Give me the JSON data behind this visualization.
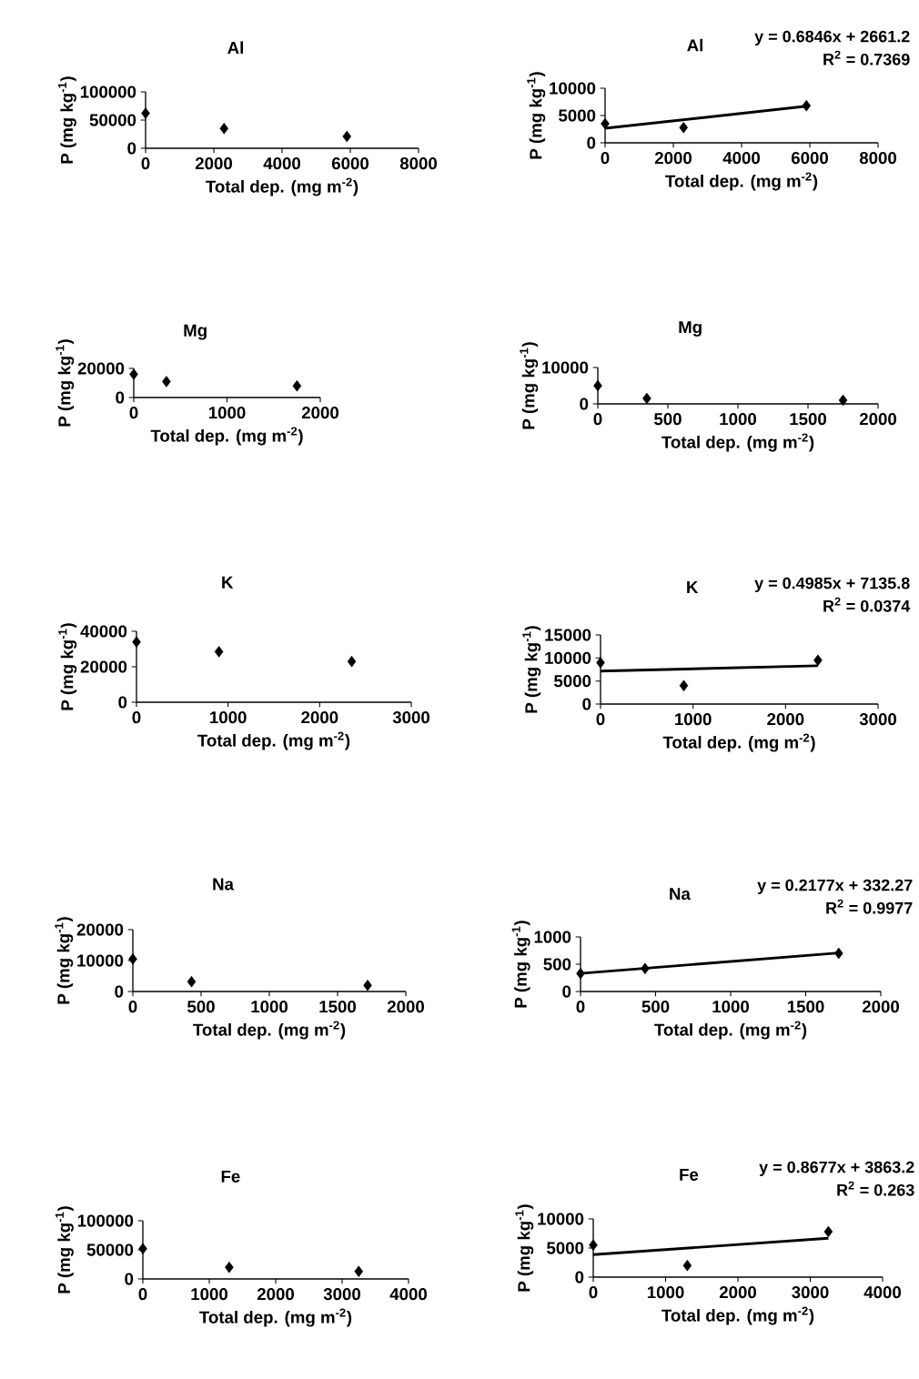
{
  "chart_data": [
    {
      "type": "scatter",
      "title": "Al",
      "xlabel": "Total dep. (mg m$^{-2}$)",
      "ylabel": "P (mg kg$^{-1}$)",
      "marker": "diamond",
      "x": [
        0,
        2300,
        5900
      ],
      "xlim": [
        0,
        8000
      ],
      "xticks": [
        0,
        2000,
        4000,
        6000,
        8000
      ],
      "ylim": [
        0,
        100000
      ],
      "yticks": [
        0,
        50000,
        100000
      ],
      "series": [
        {
          "color": "#000000",
          "values": [
            62000,
            35000,
            21000
          ]
        }
      ]
    },
    {
      "type": "scatter",
      "title": "Al",
      "xlabel": "Total dep. (mg m$^{-2}$)",
      "ylabel": "P (mg kg$^{-1}$)",
      "marker": "diamond",
      "x": [
        0,
        2300,
        5900
      ],
      "xlim": [
        0,
        8000
      ],
      "xticks": [
        0,
        2000,
        4000,
        6000,
        8000
      ],
      "ylim": [
        0,
        10000
      ],
      "yticks": [
        0,
        5000,
        10000
      ],
      "annotations": [
        "y = 0.6846x + 2661.2",
        "R$^{2}$ = 0.7369"
      ],
      "series": [
        {
          "color": "#000000",
          "values": [
            3500,
            2800,
            6800
          ]
        },
        {
          "type": "line",
          "marker": "none",
          "color": "#000000",
          "x": [
            0,
            5900
          ],
          "values": [
            2660,
            6700
          ]
        }
      ]
    },
    {
      "type": "scatter",
      "title": "Mg",
      "xlabel": "Total dep. (mg m$^{-2}$)",
      "ylabel": "P (mg kg$^{-1}$)",
      "marker": "diamond",
      "x": [
        0,
        350,
        1750
      ],
      "xlim": [
        0,
        2000
      ],
      "xticks": [
        0,
        1000,
        2000
      ],
      "ylim": [
        0,
        20000
      ],
      "yticks": [
        0,
        20000
      ],
      "series": [
        {
          "color": "#000000",
          "values": [
            16000,
            11000,
            8000
          ]
        }
      ]
    },
    {
      "type": "scatter",
      "title": "Mg",
      "xlabel": "Total dep. (mg m$^{-2}$)",
      "ylabel": "P (mg kg$^{-1}$)",
      "marker": "diamond",
      "x": [
        0,
        350,
        1750
      ],
      "xlim": [
        0,
        2000
      ],
      "xticks": [
        0,
        500,
        1000,
        1500,
        2000
      ],
      "ylim": [
        0,
        10000
      ],
      "yticks": [
        0,
        10000
      ],
      "series": [
        {
          "color": "#000000",
          "values": [
            5000,
            1500,
            1000
          ]
        }
      ]
    },
    {
      "type": "scatter",
      "title": "K",
      "xlabel": "Total dep. (mg m$^{-2}$)",
      "ylabel": "P (mg kg$^{-1}$)",
      "marker": "diamond",
      "x": [
        0,
        900,
        2350
      ],
      "xlim": [
        0,
        3000
      ],
      "xticks": [
        0,
        1000,
        2000,
        3000
      ],
      "ylim": [
        0,
        40000
      ],
      "yticks": [
        0,
        20000,
        40000
      ],
      "series": [
        {
          "color": "#000000",
          "values": [
            34000,
            28500,
            23000
          ]
        }
      ]
    },
    {
      "type": "scatter",
      "title": "K",
      "xlabel": "Total dep. (mg m$^{-2}$)",
      "ylabel": "P (mg kg$^{-1}$)",
      "marker": "diamond",
      "x": [
        0,
        900,
        2350
      ],
      "xlim": [
        0,
        3000
      ],
      "xticks": [
        0,
        1000,
        2000,
        3000
      ],
      "ylim": [
        0,
        15000
      ],
      "yticks": [
        0,
        5000,
        10000,
        15000
      ],
      "annotations": [
        "y = 0.4985x + 7135.8",
        "R$^{2}$ = 0.0374"
      ],
      "series": [
        {
          "color": "#000000",
          "values": [
            9000,
            4000,
            9500
          ]
        },
        {
          "type": "line",
          "marker": "none",
          "color": "#000000",
          "x": [
            0,
            2350
          ],
          "values": [
            7140,
            8310
          ]
        }
      ]
    },
    {
      "type": "scatter",
      "title": "Na",
      "xlabel": "Total dep. (mg m$^{-2}$)",
      "ylabel": "P (mg kg$^{-1}$)",
      "marker": "diamond",
      "x": [
        0,
        430,
        1720
      ],
      "xlim": [
        0,
        2000
      ],
      "xticks": [
        0,
        500,
        1000,
        1500,
        2000
      ],
      "ylim": [
        0,
        20000
      ],
      "yticks": [
        0,
        10000,
        20000
      ],
      "series": [
        {
          "color": "#000000",
          "values": [
            10500,
            3200,
            2000
          ]
        }
      ]
    },
    {
      "type": "scatter",
      "title": "Na",
      "xlabel": "Total dep. (mg m$^{-2}$)",
      "ylabel": "P (mg kg$^{-1}$)",
      "marker": "diamond",
      "x": [
        0,
        430,
        1720
      ],
      "xlim": [
        0,
        2000
      ],
      "xticks": [
        0,
        500,
        1000,
        1500,
        2000
      ],
      "ylim": [
        0,
        1000
      ],
      "yticks": [
        0,
        500,
        1000
      ],
      "annotations": [
        "y = 0.2177x + 332.27",
        "R$^{2}$ = 0.9977"
      ],
      "series": [
        {
          "color": "#000000",
          "values": [
            330,
            420,
            700
          ]
        },
        {
          "type": "line",
          "marker": "none",
          "color": "#000000",
          "x": [
            0,
            1720
          ],
          "values": [
            332,
            707
          ]
        }
      ]
    },
    {
      "type": "scatter",
      "title": "Fe",
      "xlabel": "Total dep. (mg m$^{-2}$)",
      "ylabel": "P (mg kg$^{-1}$)",
      "marker": "diamond",
      "x": [
        0,
        1300,
        3250
      ],
      "xlim": [
        0,
        4000
      ],
      "xticks": [
        0,
        1000,
        2000,
        3000,
        4000
      ],
      "ylim": [
        0,
        100000
      ],
      "yticks": [
        0,
        50000,
        100000
      ],
      "series": [
        {
          "color": "#000000",
          "values": [
            52000,
            20000,
            13000
          ]
        }
      ]
    },
    {
      "type": "scatter",
      "title": "Fe",
      "xlabel": "Total dep. (mg m$^{-2}$)",
      "ylabel": "P (mg kg$^{-1}$)",
      "marker": "diamond",
      "x": [
        0,
        1300,
        3250
      ],
      "xlim": [
        0,
        4000
      ],
      "xticks": [
        0,
        1000,
        2000,
        3000,
        4000
      ],
      "ylim": [
        0,
        10000
      ],
      "yticks": [
        0,
        5000,
        10000
      ],
      "annotations": [
        "y = 0.8677x + 3863.2",
        "R$^{2}$ = 0.263"
      ],
      "series": [
        {
          "color": "#000000",
          "values": [
            5500,
            2000,
            7800
          ]
        },
        {
          "type": "line",
          "marker": "none",
          "color": "#000000",
          "x": [
            0,
            3250
          ],
          "values": [
            3860,
            6680
          ]
        }
      ]
    }
  ]
}
